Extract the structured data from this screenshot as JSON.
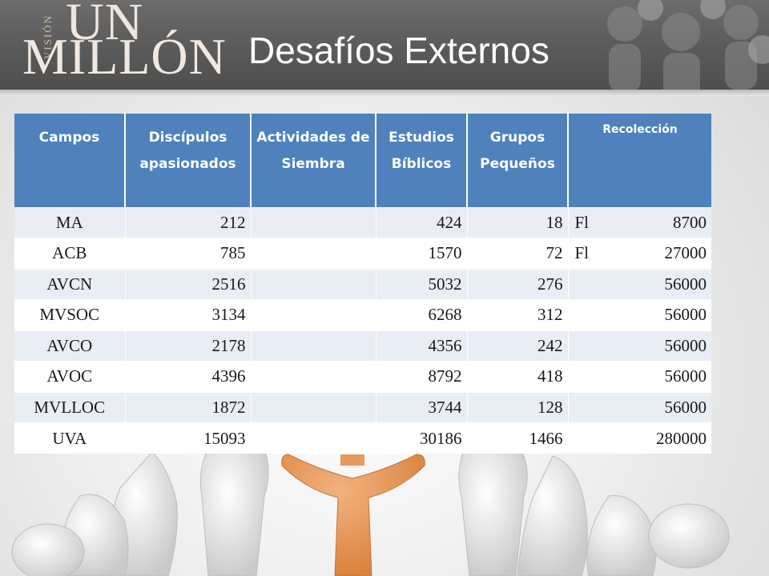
{
  "logo": {
    "vision": "VISIÓN",
    "un": "UN",
    "millon": "MILLÓN"
  },
  "title": "Desafíos Externos",
  "table": {
    "headers": [
      "Campos",
      "Discípulos apasionados",
      "Actividades de Siembra",
      "Estudios Bíblicos",
      "Grupos Pequeños",
      "Recolección"
    ],
    "rows": [
      {
        "campo": "MA",
        "discipulos": "212",
        "actividades": "",
        "estudios": "424",
        "grupos": "18",
        "recoleccion_prefix": "Fl",
        "recoleccion": "8700"
      },
      {
        "campo": "ACB",
        "discipulos": "785",
        "actividades": "",
        "estudios": "1570",
        "grupos": "72",
        "recoleccion_prefix": "Fl",
        "recoleccion": "27000"
      },
      {
        "campo": "AVCN",
        "discipulos": "2516",
        "actividades": "",
        "estudios": "5032",
        "grupos": "276",
        "recoleccion_prefix": "",
        "recoleccion": "56000"
      },
      {
        "campo": "MVSOC",
        "discipulos": "3134",
        "actividades": "",
        "estudios": "6268",
        "grupos": "312",
        "recoleccion_prefix": "",
        "recoleccion": "56000"
      },
      {
        "campo": "AVCO",
        "discipulos": "2178",
        "actividades": "",
        "estudios": "4356",
        "grupos": "242",
        "recoleccion_prefix": "",
        "recoleccion": "56000"
      },
      {
        "campo": "AVOC",
        "discipulos": "4396",
        "actividades": "",
        "estudios": "8792",
        "grupos": "418",
        "recoleccion_prefix": "",
        "recoleccion": "56000"
      },
      {
        "campo": "MVLLOC",
        "discipulos": "1872",
        "actividades": "",
        "estudios": "3744",
        "grupos": "128",
        "recoleccion_prefix": "",
        "recoleccion": "56000"
      },
      {
        "campo": "UVA",
        "discipulos": "15093",
        "actividades": "",
        "estudios": "30186",
        "grupos": "1466",
        "recoleccion_prefix": "",
        "recoleccion": "280000"
      }
    ]
  },
  "colors": {
    "header_bg": "#4f81bd",
    "band_bg": "#5a5a5a",
    "row_alt": "#e9edf4"
  }
}
